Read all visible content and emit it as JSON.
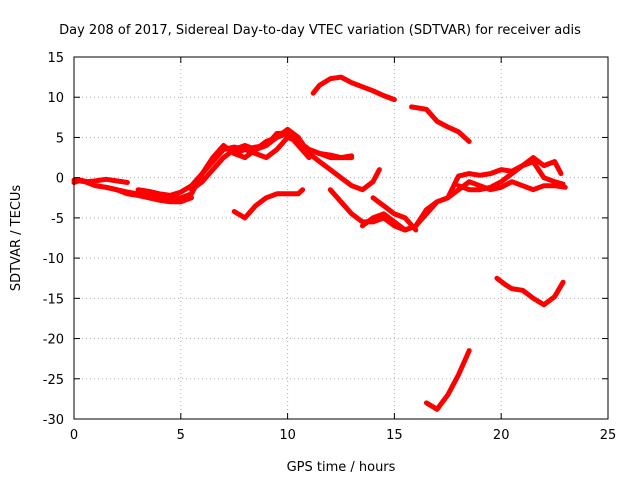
{
  "chart_data": {
    "type": "line",
    "title": "Day 208 of 2017, Sidereal Day-to-day VTEC variation (SDTVAR) for receiver adis",
    "xlabel": "GPS time / hours",
    "ylabel": "SDTVAR / TECUs",
    "xlim": [
      0,
      25
    ],
    "ylim": [
      -30,
      15
    ],
    "xticks": [
      0,
      5,
      10,
      15,
      20,
      25
    ],
    "yticks": [
      -30,
      -25,
      -20,
      -15,
      -10,
      -5,
      0,
      5,
      10,
      15
    ],
    "grid": true,
    "color": "#ff0000",
    "series": [
      {
        "name": "segment-1",
        "x": [
          0,
          0.3,
          0.6,
          1.0,
          1.5,
          2.0,
          2.5
        ],
        "y": [
          -0.6,
          -0.3,
          -0.5,
          -0.4,
          -0.2,
          -0.4,
          -0.6
        ]
      },
      {
        "name": "segment-2",
        "x": [
          0,
          0.5,
          1.0,
          1.5,
          2.0,
          2.5,
          3.0,
          3.5,
          4.0,
          4.5,
          5.0,
          5.5,
          6.0,
          6.5,
          7.0,
          7.5,
          8.0,
          8.5,
          9.0,
          9.5,
          10.0,
          10.5,
          11.0,
          11.5,
          12.0,
          12.5,
          13.0
        ],
        "y": [
          -0.3,
          -0.5,
          -1.0,
          -1.2,
          -1.5,
          -1.8,
          -2.0,
          -2.2,
          -2.3,
          -2.5,
          -2.5,
          -2.0,
          0.5,
          2.0,
          3.5,
          3.8,
          3.5,
          3.8,
          4.0,
          5.0,
          5.5,
          4.5,
          3.5,
          3.0,
          2.8,
          2.5,
          2.7
        ]
      },
      {
        "name": "segment-3",
        "x": [
          1.0,
          1.5,
          2.0,
          2.5,
          3.0,
          3.5,
          4.0,
          4.5,
          5.0,
          5.5
        ],
        "y": [
          -1.0,
          -1.2,
          -1.5,
          -2.0,
          -2.2,
          -2.5,
          -2.8,
          -3.0,
          -3.0,
          -2.5
        ]
      },
      {
        "name": "segment-4",
        "x": [
          3.0,
          3.5,
          4.0,
          4.5,
          5.0,
          5.5,
          6.0,
          6.5,
          7.0,
          7.5,
          8.0,
          8.5,
          9.0,
          9.5,
          10.0,
          10.5,
          11.0,
          11.5,
          12.0,
          12.5,
          13.0,
          13.5,
          14.0,
          14.3
        ],
        "y": [
          -1.5,
          -1.7,
          -2.0,
          -2.2,
          -1.8,
          -1.0,
          0.5,
          2.5,
          4.0,
          3.0,
          2.5,
          3.5,
          4.5,
          5.0,
          6.0,
          5.0,
          3.0,
          2.0,
          1.0,
          0,
          -1.0,
          -1.5,
          -0.5,
          1.0
        ]
      },
      {
        "name": "segment-5",
        "x": [
          5.5,
          6.0,
          6.5,
          7.0,
          7.5,
          8.0,
          8.5,
          9.0,
          9.5,
          10.0,
          10.5,
          11.0
        ],
        "y": [
          -1.5,
          -0.5,
          1.0,
          2.5,
          3.5,
          4.0,
          3.5,
          4.0,
          5.5,
          5.5,
          4.0,
          2.5
        ]
      },
      {
        "name": "segment-6",
        "x": [
          7.5,
          8.0,
          8.5,
          9.0,
          9.5,
          10.0,
          10.5,
          11.0,
          11.5,
          12.0,
          12.5,
          13.0
        ],
        "y": [
          3.0,
          3.5,
          3.0,
          2.5,
          3.5,
          5.0,
          4.5,
          3.5,
          3.0,
          2.5,
          2.5,
          2.5
        ]
      },
      {
        "name": "segment-7",
        "x": [
          7.5,
          8.0,
          8.5,
          9.0,
          9.5,
          10.0,
          10.5,
          10.7
        ],
        "y": [
          -4.2,
          -5.0,
          -3.5,
          -2.5,
          -2.0,
          -2.0,
          -2.0,
          -1.5
        ]
      },
      {
        "name": "segment-8",
        "x": [
          11.2,
          11.5,
          12.0,
          12.5,
          13.0,
          13.5,
          14.0,
          14.5,
          15.0
        ],
        "y": [
          10.5,
          11.5,
          12.3,
          12.5,
          11.8,
          11.3,
          10.8,
          10.2,
          9.7
        ]
      },
      {
        "name": "segment-9",
        "x": [
          15.8,
          16.5,
          17.0,
          17.5,
          18.0,
          18.5
        ],
        "y": [
          8.8,
          8.5,
          7.0,
          6.3,
          5.7,
          4.5
        ]
      },
      {
        "name": "segment-10",
        "x": [
          12.0,
          12.5,
          13.0,
          13.5,
          14.0,
          14.5,
          15.0,
          15.5,
          16.0,
          16.5,
          17.0,
          17.5,
          18.0,
          18.5,
          19.0,
          19.5,
          20.0,
          20.5,
          21.0,
          21.5,
          22.0,
          22.5,
          23.0
        ],
        "y": [
          -1.5,
          -3.0,
          -4.5,
          -5.5,
          -5.5,
          -5.0,
          -6.0,
          -6.5,
          -6.0,
          -4.0,
          -3.0,
          -2.5,
          -1.5,
          -0.5,
          -1.0,
          -1.5,
          -1.2,
          -0.5,
          -1.0,
          -1.5,
          -1.0,
          -1.0,
          -1.2
        ]
      },
      {
        "name": "segment-11",
        "x": [
          13.5,
          14.0,
          14.5,
          15.0,
          15.5,
          16.0,
          16.5,
          17.0,
          17.5,
          18.0,
          18.5,
          19.0,
          19.5,
          20.0,
          20.5,
          21.0,
          21.5,
          22.0,
          22.5,
          22.8
        ],
        "y": [
          -6.0,
          -5.0,
          -4.5,
          -5.5,
          -6.5,
          -6.0,
          -4.5,
          -3.0,
          -2.5,
          0.2,
          0.5,
          0.3,
          0.5,
          1.0,
          0.8,
          1.5,
          2.5,
          1.5,
          2.0,
          0.5
        ]
      },
      {
        "name": "segment-12",
        "x": [
          14.0,
          14.5,
          15.0,
          15.5,
          16.0
        ],
        "y": [
          -2.5,
          -3.5,
          -4.5,
          -5.0,
          -6.5
        ]
      },
      {
        "name": "segment-13",
        "x": [
          18.0,
          18.5,
          19.0,
          19.5,
          20.0,
          20.5,
          21.0,
          21.5,
          22.0,
          22.5,
          22.9
        ],
        "y": [
          -1.0,
          -1.5,
          -1.5,
          -1.2,
          -0.5,
          0.5,
          1.5,
          2.0,
          0.0,
          -0.5,
          -0.8
        ]
      },
      {
        "name": "segment-14",
        "x": [
          19.8,
          20.2,
          20.5,
          21.0,
          21.5,
          22.0,
          22.5,
          22.9
        ],
        "y": [
          -12.5,
          -13.3,
          -13.8,
          -14.0,
          -15.0,
          -15.8,
          -14.8,
          -13.0
        ]
      },
      {
        "name": "segment-15",
        "x": [
          16.5,
          17.0,
          17.5,
          18.0,
          18.5
        ],
        "y": [
          -28.0,
          -28.8,
          -27.0,
          -24.5,
          -21.5
        ]
      }
    ]
  }
}
